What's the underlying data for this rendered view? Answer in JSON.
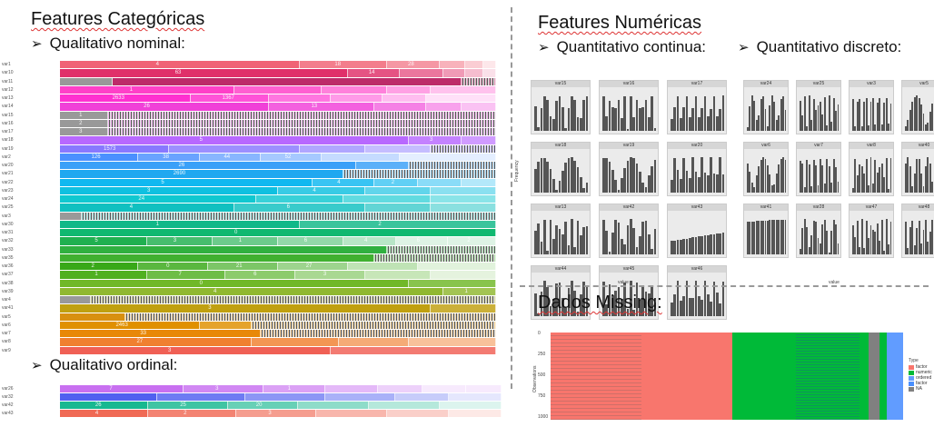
{
  "headings": {
    "categorical": "Features Categóricas",
    "qual_nominal": "Qualitativo nominal:",
    "qual_ordinal": "Qualitativo ordinal:",
    "numeric": "Features Numéricas",
    "quant_cont": "Quantitativo continua:",
    "quant_disc": "Quantitativo discreto:",
    "missing": "Dados Missing:",
    "arrow": "➢"
  },
  "nominal_rows": [
    {
      "label": "var1",
      "color": "#f06275",
      "segs": [
        0.55,
        0.2,
        0.12,
        0.06,
        0.04,
        0.03
      ],
      "texts": [
        "4",
        "18",
        "28"
      ]
    },
    {
      "label": "var10",
      "color": "#e0306a",
      "segs": [
        0.66,
        0.12,
        0.1,
        0.05,
        0.04,
        0.03
      ],
      "texts": [
        "63",
        "14"
      ]
    },
    {
      "label": "var11",
      "color": "#b0004a",
      "segs": [
        0.12,
        0.8,
        0.08
      ],
      "texts": [],
      "dense": true
    },
    {
      "label": "var12",
      "color": "#ff40c8",
      "segs": [
        0.4,
        0.2,
        0.15,
        0.1,
        0.15
      ],
      "texts": [
        "1",
        ""
      ]
    },
    {
      "label": "var13",
      "color": "#ff30d0",
      "segs": [
        0.3,
        0.18,
        0.14,
        0.12,
        0.1,
        0.16
      ],
      "texts": [
        "2633",
        "1367"
      ]
    },
    {
      "label": "var14",
      "color": "#f040d8",
      "segs": [
        0.48,
        0.24,
        0.12,
        0.08,
        0.08
      ],
      "texts": [
        "26",
        "13"
      ]
    },
    {
      "label": "var15",
      "color": "#e848d8",
      "segs": [
        0.11,
        0.89
      ],
      "texts": [
        "1"
      ],
      "dense": true
    },
    {
      "label": "var16",
      "color": "#e050e0",
      "segs": [
        0.11,
        0.89
      ],
      "texts": [
        "2"
      ],
      "dense": true
    },
    {
      "label": "var17",
      "color": "#d858e8",
      "segs": [
        0.11,
        0.89
      ],
      "texts": [
        "3"
      ],
      "dense": true
    },
    {
      "label": "var18",
      "color": "#b868ff",
      "segs": [
        0.8,
        0.12,
        0.08
      ],
      "texts": [
        "5",
        "3"
      ]
    },
    {
      "label": "var19",
      "color": "#8878ff",
      "segs": [
        0.25,
        0.3,
        0.15,
        0.15,
        0.15
      ],
      "texts": [
        "1573"
      ],
      "dense": true
    },
    {
      "label": "var2",
      "color": "#4a90ff",
      "segs": [
        0.18,
        0.14,
        0.14,
        0.14,
        0.18,
        0.22
      ],
      "texts": [
        "126",
        "38",
        "44",
        "52"
      ]
    },
    {
      "label": "var20",
      "color": "#3aa0f8",
      "segs": [
        0.68,
        0.12,
        0.2
      ],
      "texts": [
        "26"
      ],
      "dense": true
    },
    {
      "label": "var21",
      "color": "#20a8f0",
      "segs": [
        0.65,
        0.35
      ],
      "texts": [
        "2690"
      ],
      "dense": true
    },
    {
      "label": "var22",
      "color": "#10b8f0",
      "segs": [
        0.58,
        0.14,
        0.1,
        0.1,
        0.08
      ],
      "texts": [
        "5",
        "4",
        "2"
      ]
    },
    {
      "label": "var23",
      "color": "#10c0e0",
      "segs": [
        0.5,
        0.2,
        0.15,
        0.15
      ],
      "texts": [
        "3",
        "4"
      ]
    },
    {
      "label": "var24",
      "color": "#10c8d0",
      "segs": [
        0.45,
        0.2,
        0.2,
        0.15
      ],
      "texts": [
        "24"
      ]
    },
    {
      "label": "var25",
      "color": "#10c0c0",
      "segs": [
        0.4,
        0.3,
        0.15,
        0.15
      ],
      "texts": [
        "4",
        "6"
      ]
    },
    {
      "label": "var3",
      "color": "#10b0a8",
      "segs": [
        0.05,
        0.95
      ],
      "texts": [],
      "dense": true
    },
    {
      "label": "var30",
      "color": "#10b888",
      "segs": [
        0.55,
        0.45
      ],
      "texts": [
        "1",
        "2"
      ]
    },
    {
      "label": "var31",
      "color": "#10b870",
      "segs": [
        1.0
      ],
      "texts": [
        "0"
      ]
    },
    {
      "label": "var32",
      "color": "#20b050",
      "segs": [
        0.2,
        0.15,
        0.15,
        0.15,
        0.12,
        0.12,
        0.11
      ],
      "texts": [
        "5",
        "3",
        "1",
        "6",
        "4",
        "6",
        "2"
      ]
    },
    {
      "label": "var33",
      "color": "#30b040",
      "segs": [
        0.75,
        0.25
      ],
      "texts": [],
      "dense": true
    },
    {
      "label": "var35",
      "color": "#40b030",
      "segs": [
        0.72,
        0.28
      ],
      "texts": [],
      "dense": true
    },
    {
      "label": "var36",
      "color": "#38a818",
      "segs": [
        0.18,
        0.16,
        0.16,
        0.16,
        0.16,
        0.18
      ],
      "texts": [
        "2",
        "0",
        "21",
        "27"
      ]
    },
    {
      "label": "var37",
      "color": "#50b020",
      "segs": [
        0.2,
        0.18,
        0.16,
        0.16,
        0.15,
        0.15
      ],
      "texts": [
        "1",
        "7",
        "6",
        "3"
      ]
    },
    {
      "label": "var38",
      "color": "#70b828",
      "segs": [
        0.8,
        0.2
      ],
      "texts": [
        "0"
      ]
    },
    {
      "label": "var39",
      "color": "#90b830",
      "segs": [
        0.88,
        0.12
      ],
      "texts": [
        "4",
        "1"
      ]
    },
    {
      "label": "var4",
      "color": "#a0a020",
      "segs": [
        0.07,
        0.93
      ],
      "texts": [],
      "dense": true
    },
    {
      "label": "var41",
      "color": "#c0a010",
      "segs": [
        0.85,
        0.15
      ],
      "texts": [
        "3"
      ]
    },
    {
      "label": "var5",
      "color": "#d89010",
      "segs": [
        0.15,
        0.85
      ],
      "texts": [],
      "dense": true
    },
    {
      "label": "var6",
      "color": "#e09000",
      "segs": [
        0.32,
        0.12,
        0.56
      ],
      "texts": [
        "2463"
      ],
      "dense": true
    },
    {
      "label": "var7",
      "color": "#e88808",
      "segs": [
        0.46,
        0.54
      ],
      "texts": [
        "33"
      ],
      "dense": true
    },
    {
      "label": "var8",
      "color": "#f08030",
      "segs": [
        0.44,
        0.2,
        0.16,
        0.2
      ],
      "texts": [
        "27"
      ]
    },
    {
      "label": "var9",
      "color": "#f06055",
      "segs": [
        0.62,
        0.38
      ],
      "texts": [
        "3"
      ]
    }
  ],
  "ordinal_rows": [
    {
      "label": "var26",
      "color": "#c870f0",
      "segs": [
        0.28,
        0.18,
        0.14,
        0.12,
        0.1,
        0.1,
        0.08
      ],
      "texts": [
        "7",
        "3",
        "1"
      ]
    },
    {
      "label": "var32",
      "color": "#5060f0",
      "segs": [
        0.22,
        0.2,
        0.18,
        0.16,
        0.12,
        0.12
      ],
      "texts": []
    },
    {
      "label": "var42",
      "color": "#18b890",
      "segs": [
        0.2,
        0.18,
        0.16,
        0.16,
        0.16,
        0.14
      ],
      "texts": [
        "26",
        "25",
        "20"
      ]
    },
    {
      "label": "var43",
      "color": "#f06a55",
      "segs": [
        0.2,
        0.2,
        0.18,
        0.16,
        0.14,
        0.12
      ],
      "texts": [
        "4",
        "2",
        "3"
      ]
    }
  ],
  "continuous_panels": [
    "var15",
    "var16",
    "var17",
    "var18",
    "var19",
    "var20",
    "var13",
    "var42",
    "var43",
    "var44",
    "var45",
    "var46"
  ],
  "discrete_panels": [
    "var24",
    "var25",
    "var3",
    "var5",
    "var6",
    "var7",
    "var8",
    "var40",
    "var41",
    "var28",
    "var47",
    "var48"
  ],
  "hist_axis": {
    "y": "Frequency",
    "x": "value"
  },
  "missing": {
    "ylabel": "Observations",
    "yticks": [
      "0",
      "250",
      "500",
      "750",
      "1000"
    ],
    "legend_title": "Type",
    "legend": [
      {
        "name": "factor",
        "color": "#f8766d"
      },
      {
        "name": "numeric",
        "color": "#00ba38"
      },
      {
        "name": "ordered",
        "color": "#619cff"
      },
      {
        "name": "factor",
        "color": "#4a90ff"
      },
      {
        "name": "NA",
        "color": "#808080"
      }
    ]
  }
}
